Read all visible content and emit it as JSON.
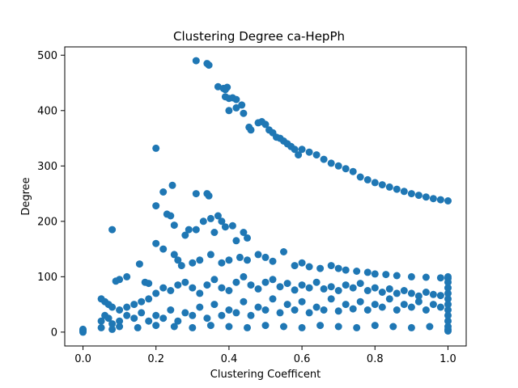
{
  "chart_data": {
    "type": "scatter",
    "title": "Clustering Degree ca-HepPh",
    "xlabel": "Clustering Coefficent",
    "ylabel": "Degree",
    "xlim": [
      -0.05,
      1.05
    ],
    "ylim": [
      -25,
      515
    ],
    "xticks": [
      0.0,
      0.2,
      0.4,
      0.6,
      0.8,
      1.0
    ],
    "xtick_labels": [
      "0.0",
      "0.2",
      "0.4",
      "0.6",
      "0.8",
      "1.0"
    ],
    "yticks": [
      0,
      100,
      200,
      300,
      400,
      500
    ],
    "ytick_labels": [
      "0",
      "100",
      "200",
      "300",
      "400",
      "500"
    ],
    "grid": false,
    "marker_color": "#1f77b4",
    "series": [
      {
        "points": [
          [
            0.0,
            0
          ],
          [
            0.0,
            2
          ],
          [
            0.0,
            4
          ],
          [
            0.0,
            5
          ],
          [
            0.31,
            490
          ],
          [
            0.34,
            485
          ],
          [
            0.345,
            482
          ],
          [
            0.37,
            443
          ],
          [
            0.385,
            440
          ],
          [
            0.39,
            438
          ],
          [
            0.395,
            442
          ],
          [
            0.39,
            425
          ],
          [
            0.4,
            422
          ],
          [
            0.41,
            423
          ],
          [
            0.42,
            420
          ],
          [
            0.4,
            400
          ],
          [
            0.42,
            405
          ],
          [
            0.435,
            410
          ],
          [
            0.44,
            395
          ],
          [
            0.455,
            370
          ],
          [
            0.46,
            365
          ],
          [
            0.48,
            378
          ],
          [
            0.49,
            380
          ],
          [
            0.5,
            375
          ],
          [
            0.51,
            365
          ],
          [
            0.52,
            360
          ],
          [
            0.53,
            352
          ],
          [
            0.54,
            350
          ],
          [
            0.55,
            345
          ],
          [
            0.56,
            340
          ],
          [
            0.57,
            335
          ],
          [
            0.58,
            330
          ],
          [
            0.59,
            320
          ],
          [
            0.6,
            330
          ],
          [
            0.62,
            325
          ],
          [
            0.64,
            320
          ],
          [
            0.66,
            312
          ],
          [
            0.68,
            305
          ],
          [
            0.7,
            300
          ],
          [
            0.72,
            295
          ],
          [
            0.74,
            290
          ],
          [
            0.76,
            280
          ],
          [
            0.78,
            275
          ],
          [
            0.8,
            270
          ],
          [
            0.82,
            266
          ],
          [
            0.84,
            262
          ],
          [
            0.86,
            258
          ],
          [
            0.88,
            254
          ],
          [
            0.9,
            250
          ],
          [
            0.92,
            247
          ],
          [
            0.94,
            244
          ],
          [
            0.96,
            241
          ],
          [
            0.98,
            239
          ],
          [
            1.0,
            237
          ],
          [
            0.2,
            332
          ],
          [
            0.2,
            228
          ],
          [
            0.22,
            253
          ],
          [
            0.245,
            265
          ],
          [
            0.23,
            213
          ],
          [
            0.24,
            210
          ],
          [
            0.25,
            193
          ],
          [
            0.31,
            250
          ],
          [
            0.34,
            250
          ],
          [
            0.345,
            246
          ],
          [
            0.33,
            200
          ],
          [
            0.35,
            205
          ],
          [
            0.37,
            210
          ],
          [
            0.38,
            200
          ],
          [
            0.39,
            190
          ],
          [
            0.41,
            192
          ],
          [
            0.36,
            180
          ],
          [
            0.29,
            185
          ],
          [
            0.31,
            185
          ],
          [
            0.28,
            175
          ],
          [
            0.44,
            180
          ],
          [
            0.45,
            170
          ],
          [
            0.42,
            165
          ],
          [
            0.08,
            185
          ],
          [
            0.155,
            123
          ],
          [
            0.12,
            100
          ],
          [
            0.1,
            95
          ],
          [
            0.09,
            92
          ],
          [
            0.17,
            90
          ],
          [
            0.18,
            88
          ],
          [
            0.2,
            160
          ],
          [
            0.22,
            150
          ],
          [
            0.25,
            140
          ],
          [
            0.26,
            130
          ],
          [
            0.27,
            120
          ],
          [
            0.3,
            125
          ],
          [
            0.32,
            130
          ],
          [
            0.35,
            140
          ],
          [
            0.38,
            125
          ],
          [
            0.4,
            130
          ],
          [
            0.43,
            135
          ],
          [
            0.45,
            130
          ],
          [
            0.48,
            140
          ],
          [
            0.5,
            135
          ],
          [
            0.52,
            128
          ],
          [
            0.55,
            145
          ],
          [
            0.58,
            120
          ],
          [
            0.6,
            125
          ],
          [
            0.62,
            118
          ],
          [
            0.65,
            115
          ],
          [
            0.68,
            120
          ],
          [
            0.7,
            115
          ],
          [
            0.72,
            112
          ],
          [
            0.75,
            110
          ],
          [
            0.78,
            108
          ],
          [
            0.8,
            105
          ],
          [
            0.83,
            104
          ],
          [
            0.86,
            102
          ],
          [
            0.9,
            100
          ],
          [
            0.94,
            99
          ],
          [
            0.98,
            98
          ],
          [
            1.0,
            97
          ],
          [
            0.05,
            60
          ],
          [
            0.06,
            55
          ],
          [
            0.07,
            50
          ],
          [
            0.08,
            45
          ],
          [
            0.1,
            40
          ],
          [
            0.12,
            45
          ],
          [
            0.14,
            50
          ],
          [
            0.16,
            55
          ],
          [
            0.18,
            60
          ],
          [
            0.2,
            70
          ],
          [
            0.22,
            80
          ],
          [
            0.24,
            75
          ],
          [
            0.26,
            85
          ],
          [
            0.28,
            90
          ],
          [
            0.3,
            80
          ],
          [
            0.32,
            70
          ],
          [
            0.34,
            85
          ],
          [
            0.36,
            95
          ],
          [
            0.38,
            80
          ],
          [
            0.4,
            75
          ],
          [
            0.42,
            90
          ],
          [
            0.44,
            100
          ],
          [
            0.46,
            85
          ],
          [
            0.48,
            78
          ],
          [
            0.5,
            90
          ],
          [
            0.52,
            95
          ],
          [
            0.54,
            82
          ],
          [
            0.56,
            88
          ],
          [
            0.58,
            76
          ],
          [
            0.6,
            85
          ],
          [
            0.62,
            80
          ],
          [
            0.64,
            90
          ],
          [
            0.66,
            78
          ],
          [
            0.68,
            82
          ],
          [
            0.7,
            75
          ],
          [
            0.72,
            85
          ],
          [
            0.74,
            80
          ],
          [
            0.76,
            88
          ],
          [
            0.78,
            75
          ],
          [
            0.8,
            80
          ],
          [
            0.82,
            72
          ],
          [
            0.84,
            78
          ],
          [
            0.86,
            70
          ],
          [
            0.88,
            75
          ],
          [
            0.9,
            70
          ],
          [
            0.92,
            65
          ],
          [
            0.94,
            72
          ],
          [
            0.96,
            68
          ],
          [
            0.98,
            66
          ],
          [
            1.0,
            60
          ],
          [
            0.05,
            20
          ],
          [
            0.06,
            30
          ],
          [
            0.07,
            25
          ],
          [
            0.08,
            15
          ],
          [
            0.1,
            20
          ],
          [
            0.12,
            30
          ],
          [
            0.14,
            25
          ],
          [
            0.16,
            35
          ],
          [
            0.18,
            20
          ],
          [
            0.2,
            30
          ],
          [
            0.22,
            25
          ],
          [
            0.24,
            40
          ],
          [
            0.26,
            20
          ],
          [
            0.28,
            35
          ],
          [
            0.3,
            30
          ],
          [
            0.32,
            45
          ],
          [
            0.34,
            25
          ],
          [
            0.36,
            50
          ],
          [
            0.38,
            30
          ],
          [
            0.4,
            40
          ],
          [
            0.42,
            35
          ],
          [
            0.44,
            55
          ],
          [
            0.46,
            30
          ],
          [
            0.48,
            45
          ],
          [
            0.5,
            40
          ],
          [
            0.52,
            60
          ],
          [
            0.54,
            35
          ],
          [
            0.56,
            50
          ],
          [
            0.58,
            40
          ],
          [
            0.6,
            55
          ],
          [
            0.62,
            35
          ],
          [
            0.64,
            45
          ],
          [
            0.66,
            40
          ],
          [
            0.68,
            60
          ],
          [
            0.7,
            38
          ],
          [
            0.72,
            50
          ],
          [
            0.74,
            42
          ],
          [
            0.76,
            55
          ],
          [
            0.78,
            40
          ],
          [
            0.8,
            50
          ],
          [
            0.82,
            45
          ],
          [
            0.84,
            60
          ],
          [
            0.86,
            40
          ],
          [
            0.88,
            50
          ],
          [
            0.9,
            45
          ],
          [
            0.92,
            55
          ],
          [
            0.94,
            40
          ],
          [
            0.96,
            50
          ],
          [
            0.98,
            45
          ],
          [
            1.0,
            40
          ],
          [
            0.05,
            8
          ],
          [
            0.08,
            5
          ],
          [
            0.1,
            10
          ],
          [
            0.15,
            8
          ],
          [
            0.2,
            12
          ],
          [
            0.25,
            10
          ],
          [
            0.3,
            8
          ],
          [
            0.35,
            12
          ],
          [
            0.4,
            10
          ],
          [
            0.45,
            8
          ],
          [
            0.5,
            12
          ],
          [
            0.55,
            10
          ],
          [
            0.6,
            8
          ],
          [
            0.65,
            12
          ],
          [
            0.7,
            10
          ],
          [
            0.75,
            8
          ],
          [
            0.8,
            12
          ],
          [
            0.85,
            10
          ],
          [
            0.9,
            8
          ],
          [
            0.95,
            10
          ],
          [
            1.0,
            5
          ],
          [
            1.0,
            2
          ],
          [
            1.0,
            10
          ],
          [
            1.0,
            20
          ],
          [
            1.0,
            30
          ],
          [
            1.0,
            50
          ],
          [
            1.0,
            70
          ],
          [
            1.0,
            80
          ],
          [
            1.0,
            90
          ],
          [
            1.0,
            100
          ]
        ]
      }
    ]
  }
}
